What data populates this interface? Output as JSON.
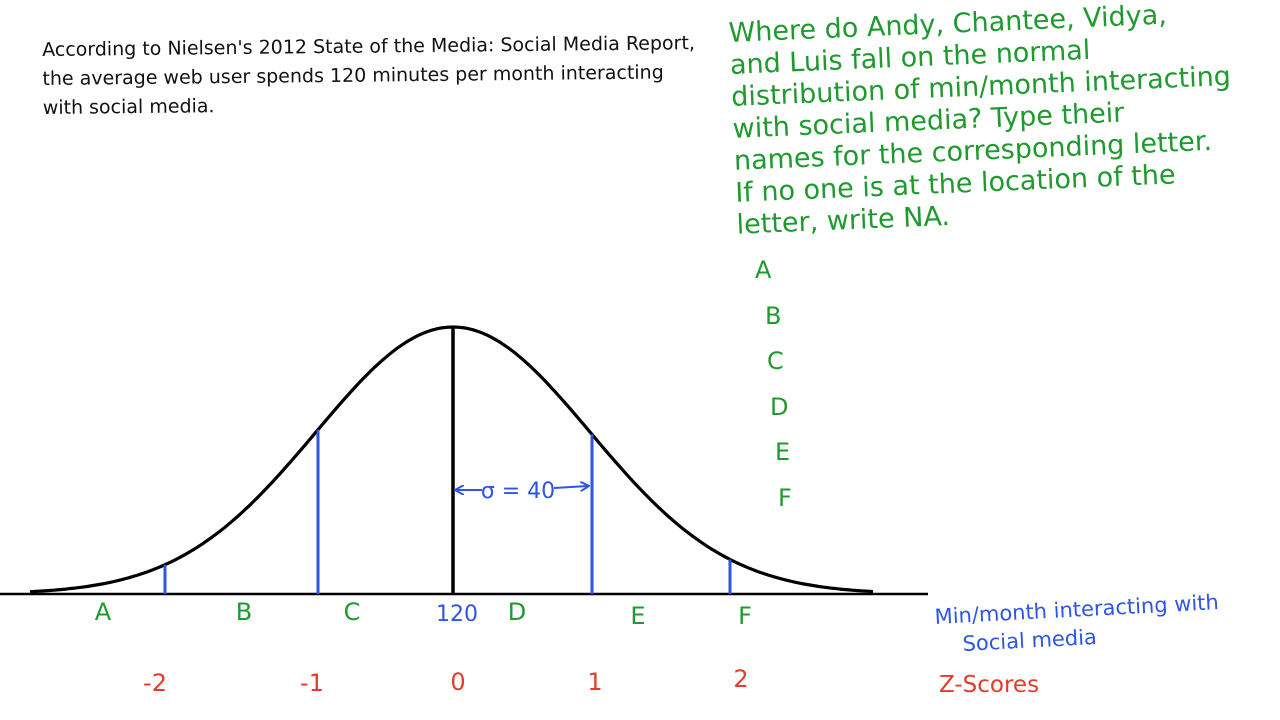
{
  "intro_lines": [
    "According to Nielsen's 2012 State of the Media: Social Media Report,",
    "the average web user spends 120 minutes per month interacting",
    "with social media."
  ],
  "question_lines": [
    "Where do Andy, Chantee, Vidya,",
    "and Luis fall on the normal",
    "distribution of min/month interacting",
    "with social media?  Type their",
    "names for the corresponding letter.",
    "If no one is at the location of the",
    "letter, write NA."
  ],
  "answer_letters": [
    "A",
    "B",
    "C",
    "D",
    "E",
    "F"
  ],
  "diagram": {
    "mean_label": "120",
    "sigma_label": "σ = 40",
    "axis_label_lines": [
      "Min/month interacting with",
      "Social media"
    ],
    "zscore_title": "Z-Scores",
    "zscores": [
      "-2",
      "-1",
      "0",
      "1",
      "2"
    ],
    "region_letters": [
      "A",
      "B",
      "C",
      "D",
      "E",
      "F"
    ],
    "colors": {
      "curve": "#000000",
      "green": "#1f9a2f",
      "blue": "#2e55e6",
      "red": "#e53b2c"
    }
  }
}
